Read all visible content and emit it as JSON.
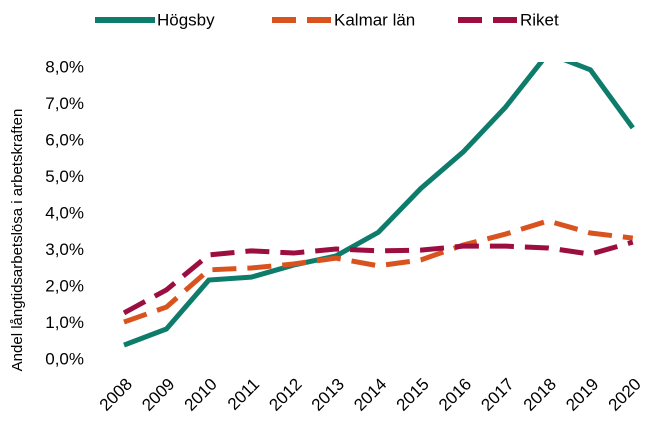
{
  "chart_data": {
    "type": "line",
    "y_label": "Andel långtidsarbetslösa i arbetskraften",
    "categories": [
      "2008",
      "2009",
      "2010",
      "2011",
      "2012",
      "2013",
      "2014",
      "2015",
      "2016",
      "2017",
      "2018",
      "2019",
      "2020"
    ],
    "series": [
      {
        "name": "Högsby",
        "color": "#0e7c6b",
        "dashed": false,
        "values": [
          0.41,
          0.85,
          2.19,
          2.27,
          2.6,
          2.85,
          3.5,
          4.7,
          5.7,
          6.93,
          8.4,
          7.95,
          6.36
        ]
      },
      {
        "name": "Kalmar län",
        "color": "#d9531e",
        "dashed": true,
        "values": [
          1.04,
          1.45,
          2.47,
          2.52,
          2.63,
          2.79,
          2.58,
          2.74,
          3.15,
          3.45,
          3.81,
          3.48,
          3.34
        ]
      },
      {
        "name": "Riket",
        "color": "#9b0e3f",
        "dashed": true,
        "values": [
          1.29,
          1.92,
          2.88,
          2.99,
          2.93,
          3.04,
          2.99,
          3.01,
          3.12,
          3.12,
          3.07,
          2.9,
          3.23
        ]
      }
    ],
    "ylim": [
      0,
      8.2
    ],
    "yticks": [
      {
        "value": 0,
        "label": "0,0%"
      },
      {
        "value": 1,
        "label": "1,0%"
      },
      {
        "value": 2,
        "label": "2,0%"
      },
      {
        "value": 3,
        "label": "3,0%"
      },
      {
        "value": 4,
        "label": "4,0%"
      },
      {
        "value": 5,
        "label": "5,0%"
      },
      {
        "value": 6,
        "label": "6,0%"
      },
      {
        "value": 7,
        "label": "7,0%"
      },
      {
        "value": 8,
        "label": "8,0%"
      }
    ],
    "grid": false,
    "legend": "top"
  }
}
